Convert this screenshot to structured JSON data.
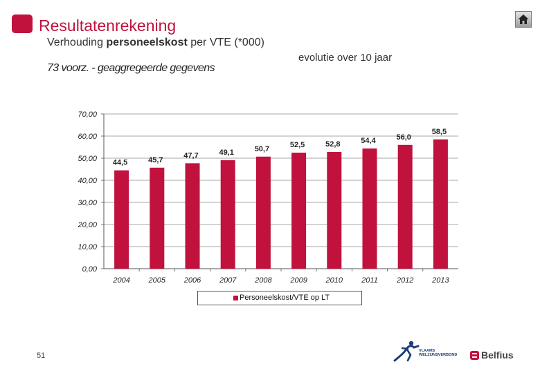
{
  "header": {
    "title": "Resultatenrekening",
    "subtitle_prefix": "Verhouding ",
    "subtitle_bold": "personeelskost",
    "subtitle_suffix": " per VTE (*000)",
    "period": "evolutie over 10 jaar"
  },
  "chart_data": {
    "type": "bar",
    "title": "73 voorz. - geaggregeerde gegevens",
    "categories": [
      "2004",
      "2005",
      "2006",
      "2007",
      "2008",
      "2009",
      "2010",
      "2011",
      "2012",
      "2013"
    ],
    "series": [
      {
        "name": "Personeelskost/VTE op LT",
        "values": [
          44.5,
          45.7,
          47.7,
          49.1,
          50.7,
          52.5,
          52.8,
          54.4,
          56.0,
          58.5
        ],
        "labels": [
          "44,5",
          "45,7",
          "47,7",
          "49,1",
          "50,7",
          "52,5",
          "52,8",
          "54,4",
          "56,0",
          "58,5"
        ]
      }
    ],
    "y_ticks": [
      0,
      10,
      20,
      30,
      40,
      50,
      60,
      70
    ],
    "y_tick_labels": [
      "0,00",
      "10,00",
      "20,00",
      "30,00",
      "40,00",
      "50,00",
      "60,00",
      "70,00"
    ],
    "ylim": [
      0,
      70
    ],
    "xlabel": "",
    "ylabel": "",
    "grid": true,
    "legend_position": "bottom",
    "colors": {
      "bar": "#c0123c"
    }
  },
  "footer": {
    "page_number": "51",
    "vvsg_line1": "VLAAMS",
    "vvsg_line2": "WELZIJNSVERBOND",
    "belfius_logo": "Belfius"
  },
  "colors": {
    "accent": "#c0123c"
  }
}
